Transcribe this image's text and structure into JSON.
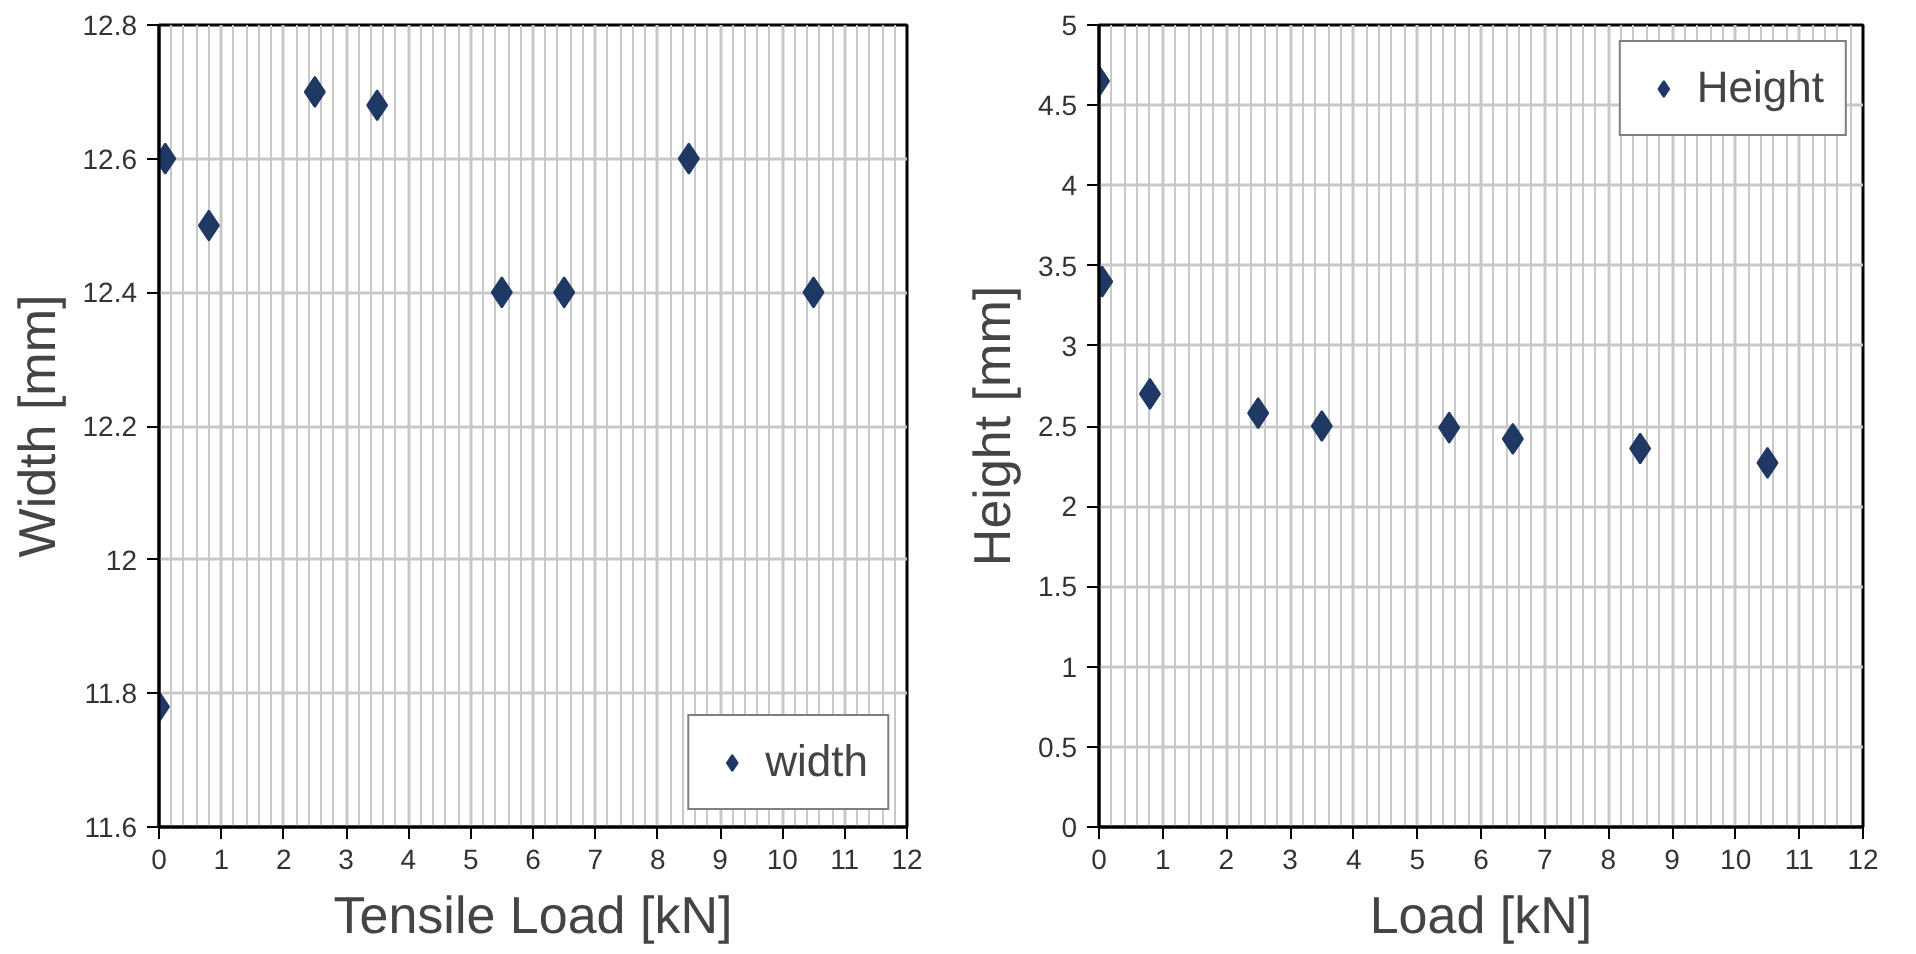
{
  "chart_data": [
    {
      "type": "scatter",
      "xlabel": "Tensile Load [kN]",
      "ylabel": "Width [mm]",
      "x": [
        0,
        0.1,
        0.8,
        2.5,
        3.5,
        5.5,
        6.5,
        8.5,
        10.5
      ],
      "series": [
        {
          "name": "width",
          "color": "#1f3864",
          "values": [
            11.78,
            12.6,
            12.5,
            12.7,
            12.68,
            12.4,
            12.4,
            12.6,
            12.4
          ]
        }
      ],
      "xlim": [
        0,
        12
      ],
      "xticks": [
        0,
        1,
        2,
        3,
        4,
        5,
        6,
        7,
        8,
        9,
        10,
        11,
        12
      ],
      "ylim": [
        11.6,
        12.8
      ],
      "yticks": [
        {
          "value": 11.6,
          "label": "11.6"
        },
        {
          "value": 11.8,
          "label": "11.8"
        },
        {
          "value": 12,
          "label": "12"
        },
        {
          "value": 12.2,
          "label": "12.2"
        },
        {
          "value": 12.4,
          "label": "12.4"
        },
        {
          "value": 12.6,
          "label": "12.6"
        },
        {
          "value": 12.8,
          "label": "12.8"
        }
      ],
      "grid": true,
      "legend": "bottom right",
      "marker": "diamond"
    },
    {
      "type": "scatter",
      "xlabel": "Load [kN]",
      "ylabel": "Height [mm]",
      "x": [
        0,
        0.05,
        0.8,
        2.5,
        3.5,
        5.5,
        6.5,
        8.5,
        10.5
      ],
      "series": [
        {
          "name": "Height",
          "color": "#1f3864",
          "values": [
            4.65,
            3.4,
            2.7,
            2.58,
            2.5,
            2.49,
            2.42,
            2.36,
            2.27
          ]
        }
      ],
      "xlim": [
        0,
        12
      ],
      "xticks": [
        0,
        1,
        2,
        3,
        4,
        5,
        6,
        7,
        8,
        9,
        10,
        11,
        12
      ],
      "ylim": [
        0,
        5
      ],
      "yticks": [
        0,
        0.5,
        1,
        1.5,
        2,
        2.5,
        3,
        3.5,
        4,
        4.5,
        5
      ],
      "grid": true,
      "legend": "top right",
      "marker": "diamond"
    }
  ]
}
